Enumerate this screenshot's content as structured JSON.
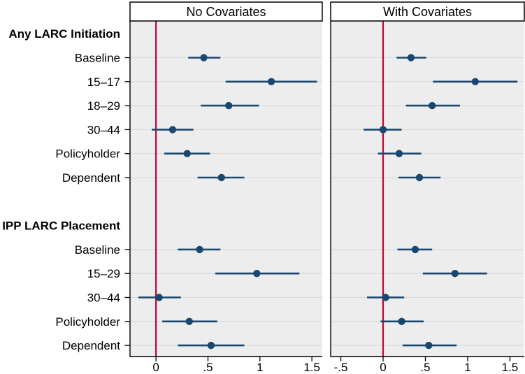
{
  "chart_data": {
    "type": "scatter",
    "subtype": "forest-plot-coefficients",
    "marker_color": "#1a476f",
    "zero_line_color": "#c10534",
    "plot_background": "#ededed",
    "gridline_color": "#d8d8d8",
    "legend": "none",
    "grid": "horizontal-on",
    "rows": [
      {
        "label": "Any LARC Initiation",
        "kind": "header"
      },
      {
        "label": "Baseline",
        "kind": "data"
      },
      {
        "label": "15–17",
        "kind": "data"
      },
      {
        "label": "18–29",
        "kind": "data"
      },
      {
        "label": "30–44",
        "kind": "data"
      },
      {
        "label": "Policyholder",
        "kind": "data"
      },
      {
        "label": "Dependent",
        "kind": "data"
      },
      {
        "label": "",
        "kind": "spacer"
      },
      {
        "label": "IPP LARC Placement",
        "kind": "header"
      },
      {
        "label": "Baseline",
        "kind": "data"
      },
      {
        "label": "15–29",
        "kind": "data"
      },
      {
        "label": "30–44",
        "kind": "data"
      },
      {
        "label": "Policyholder",
        "kind": "data"
      },
      {
        "label": "Dependent",
        "kind": "data"
      }
    ],
    "panels": [
      {
        "title": "No Covariates",
        "xlim": [
          -0.25,
          1.6
        ],
        "xtick_values": [
          0,
          0.5,
          1,
          1.5
        ],
        "xtick_labels": [
          "0",
          ".5",
          "1",
          "1.5"
        ],
        "zero_line": 0,
        "estimates": [
          {
            "est": 0.46,
            "lo": 0.31,
            "hi": 0.62
          },
          {
            "est": 1.11,
            "lo": 0.67,
            "hi": 1.55
          },
          {
            "est": 0.7,
            "lo": 0.43,
            "hi": 0.99
          },
          {
            "est": 0.16,
            "lo": -0.04,
            "hi": 0.36
          },
          {
            "est": 0.3,
            "lo": 0.08,
            "hi": 0.52
          },
          {
            "est": 0.63,
            "lo": 0.4,
            "hi": 0.85
          },
          {
            "est": 0.42,
            "lo": 0.21,
            "hi": 0.62
          },
          {
            "est": 0.97,
            "lo": 0.57,
            "hi": 1.38
          },
          {
            "est": 0.03,
            "lo": -0.17,
            "hi": 0.24
          },
          {
            "est": 0.32,
            "lo": 0.06,
            "hi": 0.59
          },
          {
            "est": 0.53,
            "lo": 0.21,
            "hi": 0.85
          }
        ]
      },
      {
        "title": "With Covariates",
        "xlim": [
          -0.62,
          1.67
        ],
        "xtick_values": [
          -0.5,
          0,
          0.5,
          1,
          1.5
        ],
        "xtick_labels": [
          "-.5",
          "0",
          ".5",
          "1",
          "1.5"
        ],
        "zero_line": 0,
        "estimates": [
          {
            "est": 0.33,
            "lo": 0.16,
            "hi": 0.51
          },
          {
            "est": 1.09,
            "lo": 0.59,
            "hi": 1.59
          },
          {
            "est": 0.58,
            "lo": 0.27,
            "hi": 0.91
          },
          {
            "est": 0.0,
            "lo": -0.23,
            "hi": 0.22
          },
          {
            "est": 0.19,
            "lo": -0.06,
            "hi": 0.45
          },
          {
            "est": 0.43,
            "lo": 0.18,
            "hi": 0.68
          },
          {
            "est": 0.38,
            "lo": 0.17,
            "hi": 0.58
          },
          {
            "est": 0.85,
            "lo": 0.47,
            "hi": 1.23
          },
          {
            "est": 0.03,
            "lo": -0.19,
            "hi": 0.25
          },
          {
            "est": 0.22,
            "lo": -0.03,
            "hi": 0.48
          },
          {
            "est": 0.54,
            "lo": 0.23,
            "hi": 0.87
          }
        ]
      }
    ]
  }
}
